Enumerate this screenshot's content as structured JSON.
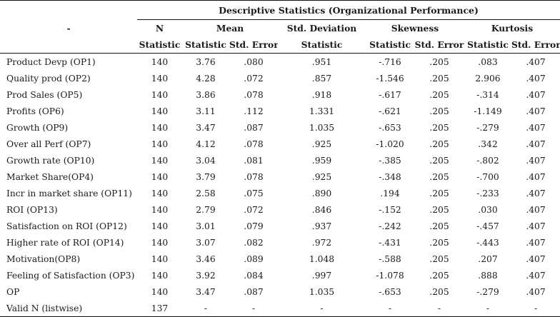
{
  "title": "Descriptive Statistics (Organizational Performance)",
  "corner_mark": "-",
  "groups": [
    {
      "label": "N",
      "span": 1
    },
    {
      "label": "Mean",
      "span": 2
    },
    {
      "label": "Std. Deviation",
      "span": 1
    },
    {
      "label": "Skewness",
      "span": 2
    },
    {
      "label": "Kurtosis",
      "span": 2
    }
  ],
  "subheaders": [
    "Statistic",
    "Statistic",
    "Std. Error",
    "Statistic",
    "Statistic",
    "Std. Error",
    "Statistic",
    "Std. Error"
  ],
  "rows": [
    {
      "label": "Product Devp (OP1)",
      "cells": [
        "140",
        "3.76",
        ".080",
        ".951",
        "-.716",
        ".205",
        ".083",
        ".407"
      ]
    },
    {
      "label": "Quality prod (OP2)",
      "cells": [
        "140",
        "4.28",
        ".072",
        ".857",
        "-1.546",
        ".205",
        "2.906",
        ".407"
      ]
    },
    {
      "label": "Prod Sales (OP5)",
      "cells": [
        "140",
        "3.86",
        ".078",
        ".918",
        "-.617",
        ".205",
        "-.314",
        ".407"
      ]
    },
    {
      "label": "Profits (OP6)",
      "cells": [
        "140",
        "3.11",
        ".112",
        "1.331",
        "-.621",
        ".205",
        "-1.149",
        ".407"
      ]
    },
    {
      "label": "Growth (OP9)",
      "cells": [
        "140",
        "3.47",
        ".087",
        "1.035",
        "-.653",
        ".205",
        "-.279",
        ".407"
      ]
    },
    {
      "label": "Over all Perf (OP7)",
      "cells": [
        "140",
        "4.12",
        ".078",
        ".925",
        "-1.020",
        ".205",
        ".342",
        ".407"
      ]
    },
    {
      "label": "Growth rate (OP10)",
      "cells": [
        "140",
        "3.04",
        ".081",
        ".959",
        "-.385",
        ".205",
        "-.802",
        ".407"
      ]
    },
    {
      "label": "Market Share(OP4)",
      "cells": [
        "140",
        "3.79",
        ".078",
        ".925",
        "-.348",
        ".205",
        "-.700",
        ".407"
      ]
    },
    {
      "label": "Incr in market share (OP11)",
      "cells": [
        "140",
        "2.58",
        ".075",
        ".890",
        ".194",
        ".205",
        "-.233",
        ".407"
      ]
    },
    {
      "label": "ROI (OP13)",
      "cells": [
        "140",
        "2.79",
        ".072",
        ".846",
        "-.152",
        ".205",
        ".030",
        ".407"
      ]
    },
    {
      "label": "Satisfaction on ROI (OP12)",
      "cells": [
        "140",
        "3.01",
        ".079",
        ".937",
        "-.242",
        ".205",
        "-.457",
        ".407"
      ]
    },
    {
      "label": "Higher rate of ROI (OP14)",
      "cells": [
        "140",
        "3.07",
        ".082",
        ".972",
        "-.431",
        ".205",
        "-.443",
        ".407"
      ]
    },
    {
      "label": "Motivation(OP8)",
      "cells": [
        "140",
        "3.46",
        ".089",
        "1.048",
        "-.588",
        ".205",
        ".207",
        ".407"
      ]
    },
    {
      "label": "Feeling of Satisfaction (OP3)",
      "cells": [
        "140",
        "3.92",
        ".084",
        ".997",
        "-1.078",
        ".205",
        ".888",
        ".407"
      ]
    },
    {
      "label": "OP",
      "cells": [
        "140",
        "3.47",
        ".087",
        "1.035",
        "-.653",
        ".205",
        "-.279",
        ".407"
      ]
    },
    {
      "label": "Valid N (listwise)",
      "cells": [
        "137",
        "-",
        "-",
        "-",
        "-",
        "-",
        "-",
        "-"
      ]
    }
  ]
}
